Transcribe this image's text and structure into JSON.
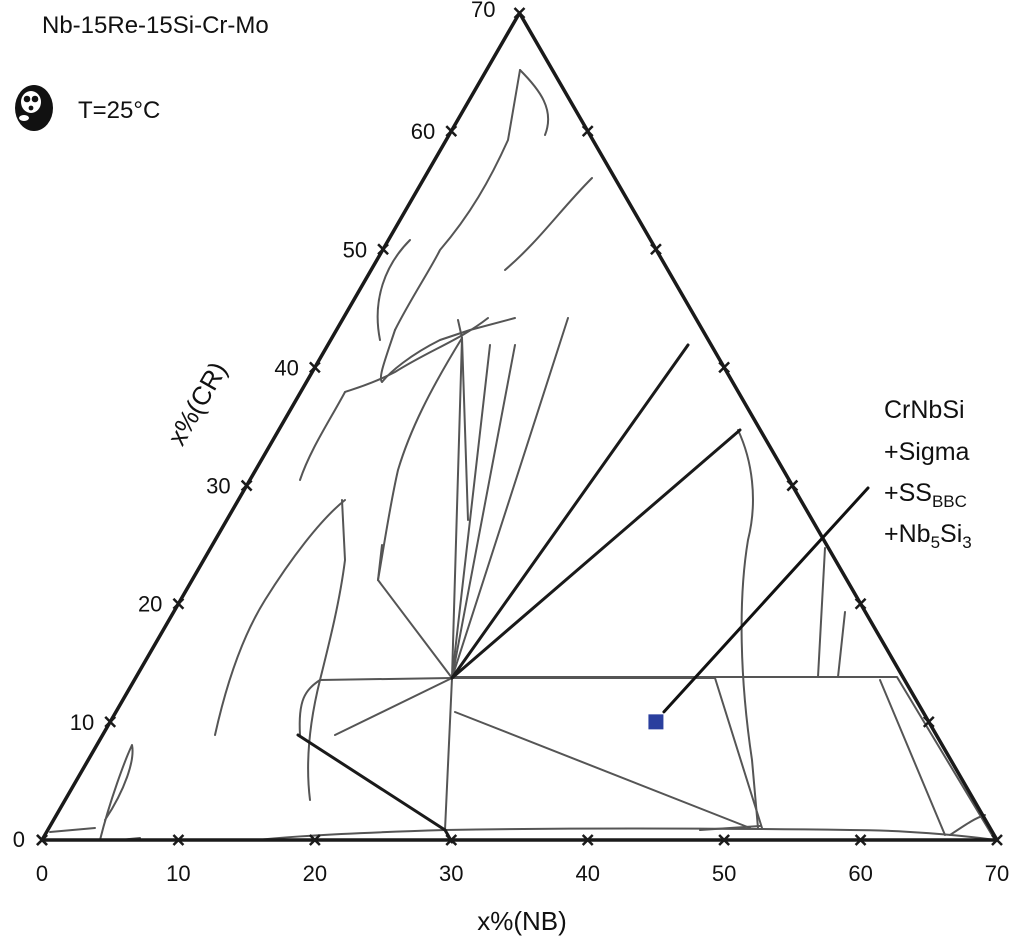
{
  "chart_data": {
    "type": "ternary_phase_diagram",
    "title": "Nb-15Re-15Si-Cr-Mo",
    "temperature_label": "T=25°C",
    "xlabel": "x%(NB)",
    "ylabel": "x%(CR)",
    "xlim": [
      0,
      70
    ],
    "ylim": [
      0,
      70
    ],
    "x_ticks": [
      "0",
      "10",
      "20",
      "30",
      "40",
      "50",
      "60",
      "70"
    ],
    "y_ticks": [
      "0",
      "10",
      "20",
      "30",
      "40",
      "50",
      "60",
      "70"
    ],
    "marker": {
      "nb": 45,
      "cr": 10,
      "color": "#2a3f9e",
      "label_lines": [
        "CrNbSi",
        "+Sigma",
        "+SS",
        "+Nb",
        "Si"
      ],
      "label": {
        "line1": "CrNbSi",
        "line2": "+Sigma",
        "line3_main": "+SS",
        "line3_sub": "BBC",
        "line4_a": "+Nb",
        "line4_sub1": "5",
        "line4_b": "Si",
        "line4_sub2": "3"
      }
    },
    "grid": false,
    "line_color": "#555555",
    "boundary_color": "#1a1a1a"
  }
}
